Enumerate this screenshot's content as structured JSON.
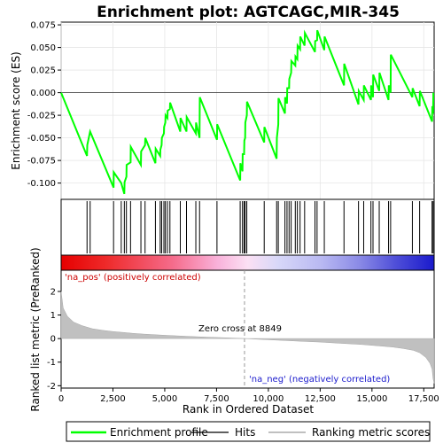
{
  "chart_data": {
    "type": "line",
    "title": "Enrichment plot: AGTCAGC,MIR-345",
    "xlabel": "Rank in Ordered Dataset",
    "ylabel_top": "Enrichment score (ES)",
    "ylabel_bottom": "Ranked list metric (PreRanked)",
    "x_ticks": [
      "0",
      "2,500",
      "5,000",
      "7,500",
      "10,000",
      "12,500",
      "15,000",
      "17,500"
    ],
    "x_tick_values": [
      0,
      2500,
      5000,
      7500,
      10000,
      12500,
      15000,
      17500
    ],
    "xlim": [
      0,
      18000
    ],
    "es_ylim": [
      -0.118,
      0.078
    ],
    "es_ticks": [
      "0.075",
      "0.050",
      "0.025",
      "0.000",
      "-0.025",
      "-0.050",
      "-0.075",
      "-0.100"
    ],
    "es_tick_values": [
      0.075,
      0.05,
      0.025,
      0.0,
      -0.025,
      -0.05,
      -0.075,
      -0.1
    ],
    "metric_ylim": [
      -2.1,
      2.9
    ],
    "metric_ticks": [
      "2",
      "1",
      "0",
      "-1",
      "-2"
    ],
    "metric_tick_values": [
      2,
      1,
      0,
      -1,
      -2
    ],
    "series": [
      {
        "name": "Enrichment profile",
        "color": "#00ff00",
        "x": [
          0,
          1250,
          1260,
          1400,
          2530,
          2540,
          2900,
          3050,
          3060,
          3150,
          3160,
          3350,
          3360,
          3850,
          3860,
          4050,
          4060,
          4550,
          4560,
          4780,
          4790,
          4850,
          4860,
          4960,
          4970,
          5030,
          5040,
          5130,
          5140,
          5250,
          5260,
          5750,
          5760,
          6050,
          6060,
          6500,
          6510,
          6680,
          6690,
          7520,
          7530,
          8640,
          8650,
          8750,
          8760,
          8830,
          8840,
          8880,
          8890,
          8960,
          8970,
          9800,
          9810,
          10400,
          10410,
          10480,
          10490,
          10800,
          10810,
          10900,
          10910,
          11000,
          11010,
          11100,
          11110,
          11300,
          11310,
          11400,
          11410,
          11530,
          11540,
          11750,
          11760,
          12250,
          12260,
          12350,
          12360,
          12700,
          12710,
          13650,
          13660,
          14350,
          14360,
          14600,
          14610,
          14950,
          14960,
          15050,
          15060,
          15350,
          15360,
          15800,
          15810,
          15900,
          15910,
          16950,
          16960,
          17300,
          17310,
          17900,
          17910,
          17950,
          17960
        ],
        "y": [
          0.0,
          -0.07,
          -0.058,
          -0.043,
          -0.105,
          -0.088,
          -0.1,
          -0.112,
          -0.099,
          -0.093,
          -0.08,
          -0.077,
          -0.06,
          -0.08,
          -0.065,
          -0.058,
          -0.05,
          -0.078,
          -0.062,
          -0.07,
          -0.063,
          -0.058,
          -0.05,
          -0.045,
          -0.038,
          -0.033,
          -0.025,
          -0.028,
          -0.02,
          -0.018,
          -0.011,
          -0.043,
          -0.028,
          -0.043,
          -0.027,
          -0.045,
          -0.033,
          -0.05,
          -0.005,
          -0.052,
          -0.035,
          -0.097,
          -0.078,
          -0.087,
          -0.068,
          -0.068,
          -0.053,
          -0.05,
          -0.033,
          -0.025,
          -0.01,
          -0.055,
          -0.038,
          -0.073,
          -0.05,
          -0.035,
          -0.006,
          -0.023,
          -0.005,
          -0.012,
          0.005,
          0.005,
          0.015,
          0.022,
          0.035,
          0.03,
          0.04,
          0.037,
          0.052,
          0.048,
          0.062,
          0.052,
          0.066,
          0.045,
          0.057,
          0.058,
          0.069,
          0.047,
          0.062,
          0.008,
          0.032,
          -0.013,
          0.002,
          -0.008,
          0.008,
          -0.008,
          0.008,
          -0.005,
          0.02,
          0.002,
          0.022,
          -0.008,
          0.008,
          0.0,
          0.042,
          -0.005,
          0.005,
          -0.015,
          0.002,
          -0.032,
          -0.015,
          -0.023,
          0.0
        ]
      }
    ],
    "hits": [
      1250,
      1400,
      2530,
      2900,
      3050,
      3150,
      3350,
      3850,
      4050,
      4550,
      4780,
      4850,
      4960,
      5030,
      5130,
      5250,
      5750,
      6050,
      6500,
      6680,
      7520,
      8640,
      8750,
      8830,
      8880,
      8960,
      9800,
      10400,
      10480,
      10800,
      10900,
      11000,
      11100,
      11300,
      11400,
      11530,
      11750,
      12250,
      12350,
      12700,
      13650,
      14350,
      14600,
      14950,
      15050,
      15350,
      15800,
      15900,
      16950,
      17300,
      17900,
      17950
    ],
    "metric_x": [
      0,
      100,
      300,
      600,
      1000,
      1500,
      2000,
      2500,
      3000,
      3500,
      4000,
      5000,
      6000,
      7000,
      8000,
      8849,
      9500,
      10500,
      11500,
      12500,
      13500,
      14500,
      15500,
      16000,
      16500,
      17000,
      17300,
      17600,
      17800,
      17900,
      17950,
      18000
    ],
    "metric_y": [
      2.0,
      1.3,
      0.95,
      0.7,
      0.55,
      0.42,
      0.35,
      0.3,
      0.26,
      0.22,
      0.19,
      0.14,
      0.1,
      0.06,
      0.03,
      0.0,
      -0.03,
      -0.07,
      -0.11,
      -0.15,
      -0.2,
      -0.25,
      -0.32,
      -0.36,
      -0.42,
      -0.5,
      -0.6,
      -0.8,
      -1.05,
      -1.3,
      -1.7,
      -1.9
    ],
    "zero_cross_label": "Zero cross at 8849",
    "zero_cross_x": 8849,
    "pos_label": "'na_pos' (positively correlated)",
    "neg_label": "'na_neg' (negatively correlated)",
    "pos_color": "#cc0000",
    "neg_color": "#1a1acc",
    "legend": [
      "Enrichment profile",
      "Hits",
      "Ranking metric scores"
    ],
    "legend_colors": [
      "#00ff00",
      "#000000",
      "#c0c0c0"
    ]
  }
}
